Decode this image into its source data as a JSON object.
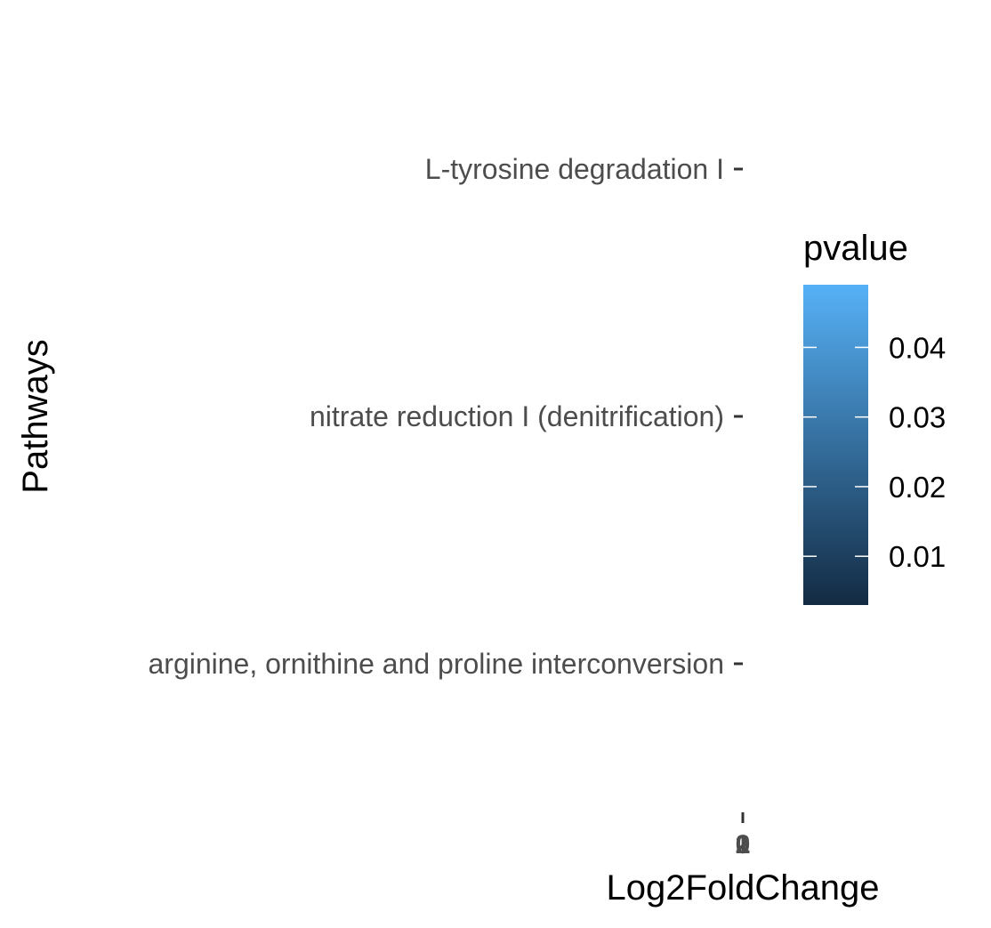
{
  "chart_data": {
    "type": "bar",
    "orientation": "horizontal",
    "xlabel": "Log2FoldChange",
    "ylabel": "Pathways",
    "categories": [
      "arginine, ornithine and proline interconversion",
      "nitrate reduction I (denitrification)",
      "L-tyrosine degradation I"
    ],
    "values": [
      0,
      0,
      0
    ],
    "x_tick_labels": [
      "0",
      "1",
      "2"
    ],
    "grid": false,
    "legend": {
      "title": "pvalue",
      "type": "colorbar",
      "placement": "right",
      "labels": [
        "0.01",
        "0.02",
        "0.03",
        "0.04"
      ],
      "ticks": [
        0.01,
        0.02,
        0.03,
        0.04
      ],
      "range": [
        0.003,
        0.049
      ],
      "color_low": "#132b43",
      "color_high": "#56b1f7"
    }
  }
}
